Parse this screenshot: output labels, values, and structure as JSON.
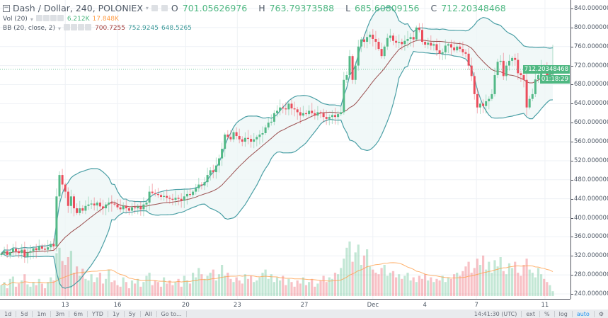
{
  "header": {
    "symbol": "Dash / Dollar, 240, POLONIEX",
    "o_label": "O",
    "o": "701.05626976",
    "h_label": "H",
    "h": "763.79373588",
    "l_label": "L",
    "l": "685.60809156",
    "c_label": "C",
    "c": "712.20348468"
  },
  "vol_legend": {
    "name": "Vol (20)",
    "value": "6.212K",
    "ma": "17.848K"
  },
  "bb_legend": {
    "name": "BB (20, close, 2)",
    "basis": "700.7255",
    "upper": "752.9245",
    "lower": "648.5265"
  },
  "colors": {
    "up": "#53b987",
    "down": "#eb4d5c",
    "bb": "#4a9fa5",
    "basis": "#9a4f4f",
    "vol_ma": "#ff9f4a",
    "bb_fill": "#eef6f6"
  },
  "price_axis": {
    "labels": [
      "840.000000000",
      "800.000000000",
      "760.000000000",
      "720.000000000",
      "680.000000000",
      "640.000000000",
      "600.000000000",
      "560.000000000",
      "520.000000000",
      "480.000000000",
      "440.000000000",
      "400.000000000",
      "360.000000000",
      "320.000000000",
      "280.000000000",
      "240.000000000"
    ],
    "last_price": "712.20348468",
    "countdown": "01:18:29"
  },
  "time_axis": [
    {
      "label": "13",
      "bar": 22
    },
    {
      "label": "16",
      "bar": 40
    },
    {
      "label": "20",
      "bar": 63.5
    },
    {
      "label": "23",
      "bar": 81.3
    },
    {
      "label": "27",
      "bar": 104.4
    },
    {
      "label": "Dec",
      "bar": 128
    },
    {
      "label": "4",
      "bar": 145.9
    },
    {
      "label": "7",
      "bar": 163.7
    },
    {
      "label": "11",
      "bar": 187.3
    }
  ],
  "toolbar": {
    "ranges": [
      "1d",
      "5d",
      "1m",
      "3m",
      "6m",
      "YTD",
      "1y",
      "5y",
      "All",
      "Go to..."
    ],
    "time": "14:41:30 (UTC)",
    "ext": "ext",
    "pct": "%",
    "log": "log",
    "auto": "auto"
  },
  "chart_data": {
    "type": "candlestick",
    "interval": "240",
    "ylim": [
      240,
      840
    ],
    "last": {
      "open": 701.05626976,
      "high": 763.79373588,
      "low": 685.60809156,
      "close": 712.20348468
    },
    "closes": [
      325,
      330,
      322,
      328,
      335,
      330,
      326,
      333,
      318,
      327,
      330,
      336,
      332,
      340,
      335,
      333,
      338,
      345,
      340,
      445,
      490,
      470,
      455,
      425,
      445,
      420,
      410,
      420,
      415,
      425,
      428,
      430,
      426,
      432,
      424,
      420,
      428,
      432,
      430,
      428,
      422,
      418,
      425,
      420,
      415,
      422,
      420,
      424,
      418,
      428,
      432,
      455,
      452,
      450,
      448,
      444,
      446,
      442,
      440,
      438,
      442,
      440,
      436,
      445,
      450,
      448,
      455,
      462,
      470,
      468,
      475,
      490,
      500,
      496,
      510,
      525,
      545,
      575,
      570,
      565,
      580,
      572,
      565,
      560,
      568,
      566,
      560,
      565,
      570,
      575,
      578,
      590,
      600,
      602,
      620,
      625,
      632,
      630,
      628,
      640,
      630,
      628,
      622,
      615,
      620,
      618,
      625,
      620,
      615,
      622,
      620,
      612,
      608,
      612,
      616,
      612,
      618,
      622,
      690,
      700,
      740,
      690,
      720,
      760,
      775,
      770,
      780,
      785,
      776,
      770,
      755,
      740,
      760,
      778,
      783,
      772,
      768,
      770,
      765,
      772,
      776,
      780,
      775,
      800,
      795,
      770,
      764,
      768,
      762,
      765,
      752,
      745,
      748,
      762,
      765,
      758,
      752,
      760,
      755,
      748,
      745,
      720,
      698,
      660,
      632,
      640,
      635,
      645,
      650,
      660,
      700,
      728,
      730,
      698,
      720,
      730,
      736,
      732,
      704,
      700,
      690,
      632,
      650,
      660,
      691,
      700,
      719,
      718,
      699,
      705,
      712.2
    ],
    "volumes_k": [
      14,
      18,
      10,
      22,
      25,
      12,
      16,
      20,
      28,
      15,
      12,
      18,
      14,
      22,
      16,
      10,
      18,
      24,
      20,
      55,
      62,
      45,
      40,
      50,
      58,
      30,
      38,
      26,
      35,
      22,
      20,
      28,
      18,
      24,
      30,
      16,
      22,
      34,
      18,
      20,
      14,
      12,
      24,
      18,
      10,
      20,
      16,
      22,
      12,
      18,
      26,
      30,
      14,
      20,
      18,
      12,
      24,
      16,
      20,
      14,
      18,
      22,
      12,
      26,
      20,
      16,
      30,
      24,
      36,
      28,
      22,
      26,
      30,
      34,
      20,
      28,
      40,
      26,
      30,
      22,
      18,
      24,
      20,
      16,
      28,
      22,
      26,
      18,
      20,
      24,
      30,
      34,
      22,
      28,
      18,
      24,
      20,
      26,
      14,
      22,
      18,
      12,
      20,
      16,
      24,
      14,
      18,
      22,
      12,
      16,
      20,
      26,
      18,
      24,
      22,
      30,
      28,
      36,
      48,
      62,
      70,
      44,
      56,
      66,
      40,
      52,
      60,
      38,
      34,
      30,
      28,
      36,
      40,
      26,
      30,
      32,
      24,
      28,
      22,
      26,
      30,
      20,
      24,
      18,
      26,
      22,
      28,
      20,
      24,
      18,
      22,
      20,
      26,
      18,
      24,
      22,
      28,
      30,
      26,
      32,
      38,
      44,
      30,
      36,
      48,
      40,
      52,
      34,
      44,
      30,
      46,
      38,
      50,
      32,
      28,
      42,
      36,
      44,
      30,
      26,
      40,
      48,
      34,
      30,
      24,
      36,
      28,
      22,
      18,
      14,
      6.212
    ]
  }
}
